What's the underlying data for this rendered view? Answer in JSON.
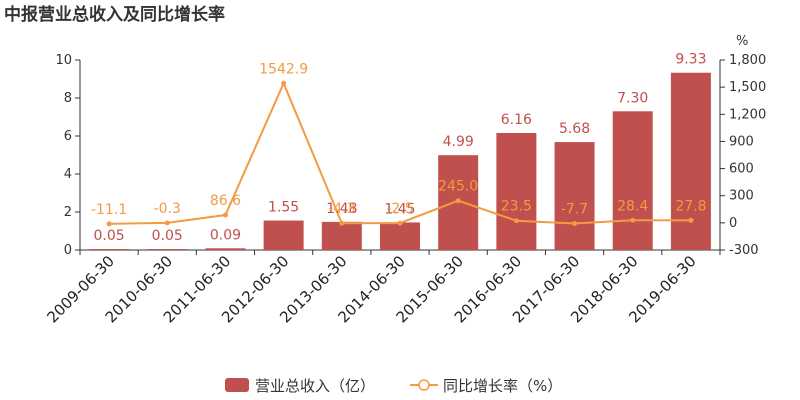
{
  "chart_data": {
    "type": "bar",
    "title": "中报营业总收入及同比增长率",
    "categories": [
      "2009-06-30",
      "2010-06-30",
      "2011-06-30",
      "2012-06-30",
      "2013-06-30",
      "2014-06-30",
      "2015-06-30",
      "2016-06-30",
      "2017-06-30",
      "2018-06-30",
      "2019-06-30"
    ],
    "series": [
      {
        "name": "营业总收入（亿）",
        "type": "bar",
        "axis": "left",
        "values": [
          0.05,
          0.05,
          0.09,
          1.55,
          1.48,
          1.45,
          4.99,
          6.16,
          5.68,
          7.3,
          9.33
        ],
        "labels": [
          "0.05",
          "0.05",
          "0.09",
          "1.55",
          "1.48",
          "1.45",
          "4.99",
          "6.16",
          "5.68",
          "7.30",
          "9.33"
        ],
        "color": "#c0504d"
      },
      {
        "name": "同比增长率（%）",
        "type": "line",
        "axis": "right",
        "values": [
          -11.1,
          -0.3,
          86.6,
          1542.9,
          -4.3,
          -2.5,
          245.0,
          23.5,
          -7.7,
          28.4,
          27.8
        ],
        "labels": [
          "-11.1",
          "-0.3",
          "86.6",
          "1542.9",
          "-4.3",
          "-2.5",
          "245.0",
          "23.5",
          "-7.7",
          "28.4",
          "27.8"
        ],
        "color": "#f39a43"
      }
    ],
    "y_left": {
      "ylim": [
        0,
        10
      ],
      "ticks": [
        "0",
        "2",
        "4",
        "6",
        "8",
        "10"
      ]
    },
    "y_right": {
      "unit": "%",
      "ylim": [
        -300,
        1800
      ],
      "ticks": [
        "-300",
        "0",
        "300",
        "600",
        "900",
        "1,200",
        "1,500",
        "1,800"
      ]
    },
    "legend_position": "bottom-center",
    "grid": false
  }
}
